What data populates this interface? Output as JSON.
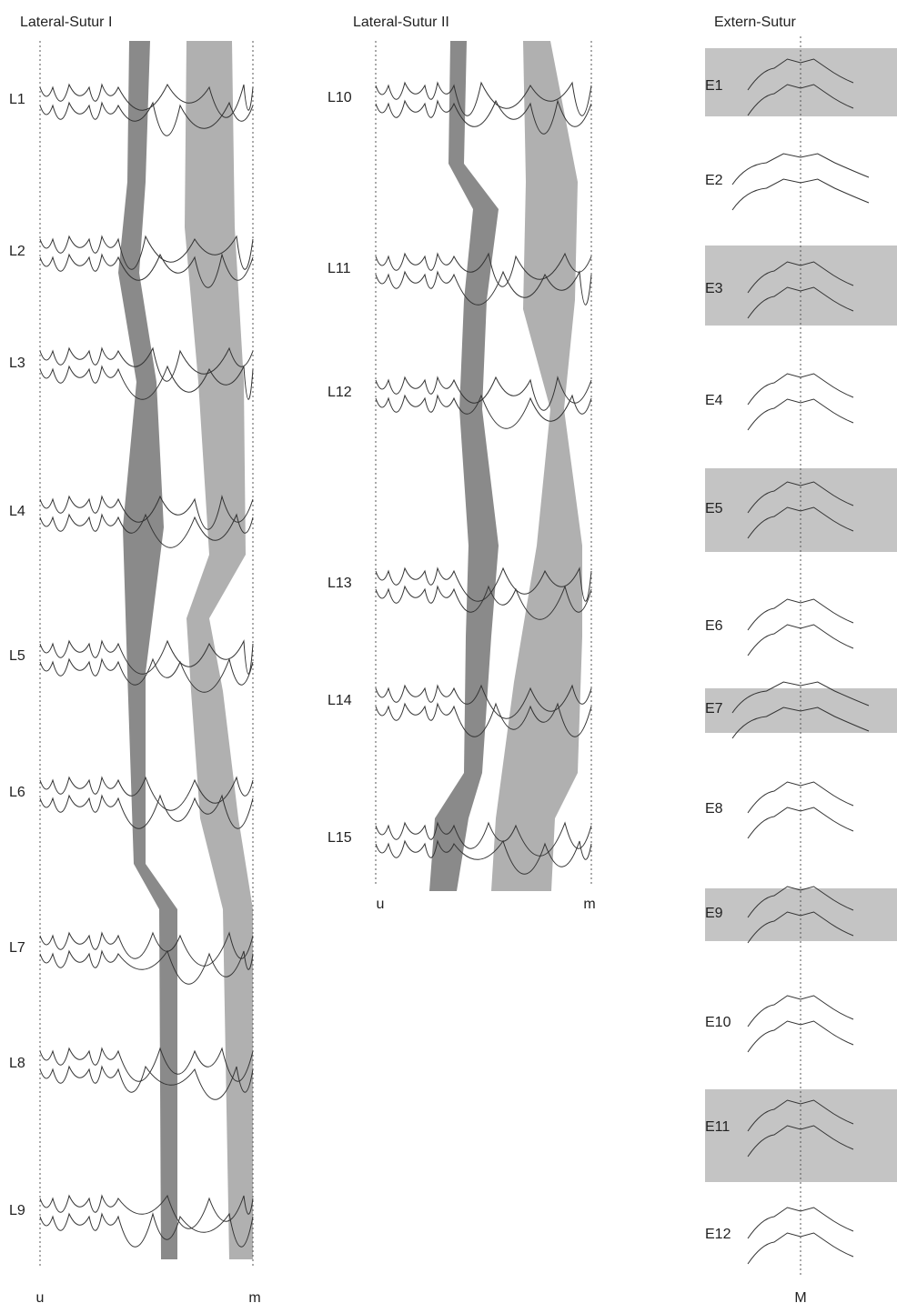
{
  "columns": [
    {
      "title": "Lateral-Sutur I",
      "labels": [
        "L1",
        "L2",
        "L3",
        "L4",
        "L5",
        "L6",
        "L7",
        "L8",
        "L9"
      ],
      "axis_left": "u",
      "axis_right": "m"
    },
    {
      "title": "Lateral-Sutur II",
      "labels": [
        "L10",
        "L11",
        "L12",
        "L13",
        "L14",
        "L15"
      ],
      "axis_left": "u",
      "axis_right": "m"
    },
    {
      "title": "Extern-Sutur",
      "labels": [
        "E1",
        "E2",
        "E3",
        "E4",
        "E5",
        "E6",
        "E7",
        "E8",
        "E9",
        "E10",
        "E11",
        "E12"
      ],
      "axis_bottom": "M"
    }
  ]
}
